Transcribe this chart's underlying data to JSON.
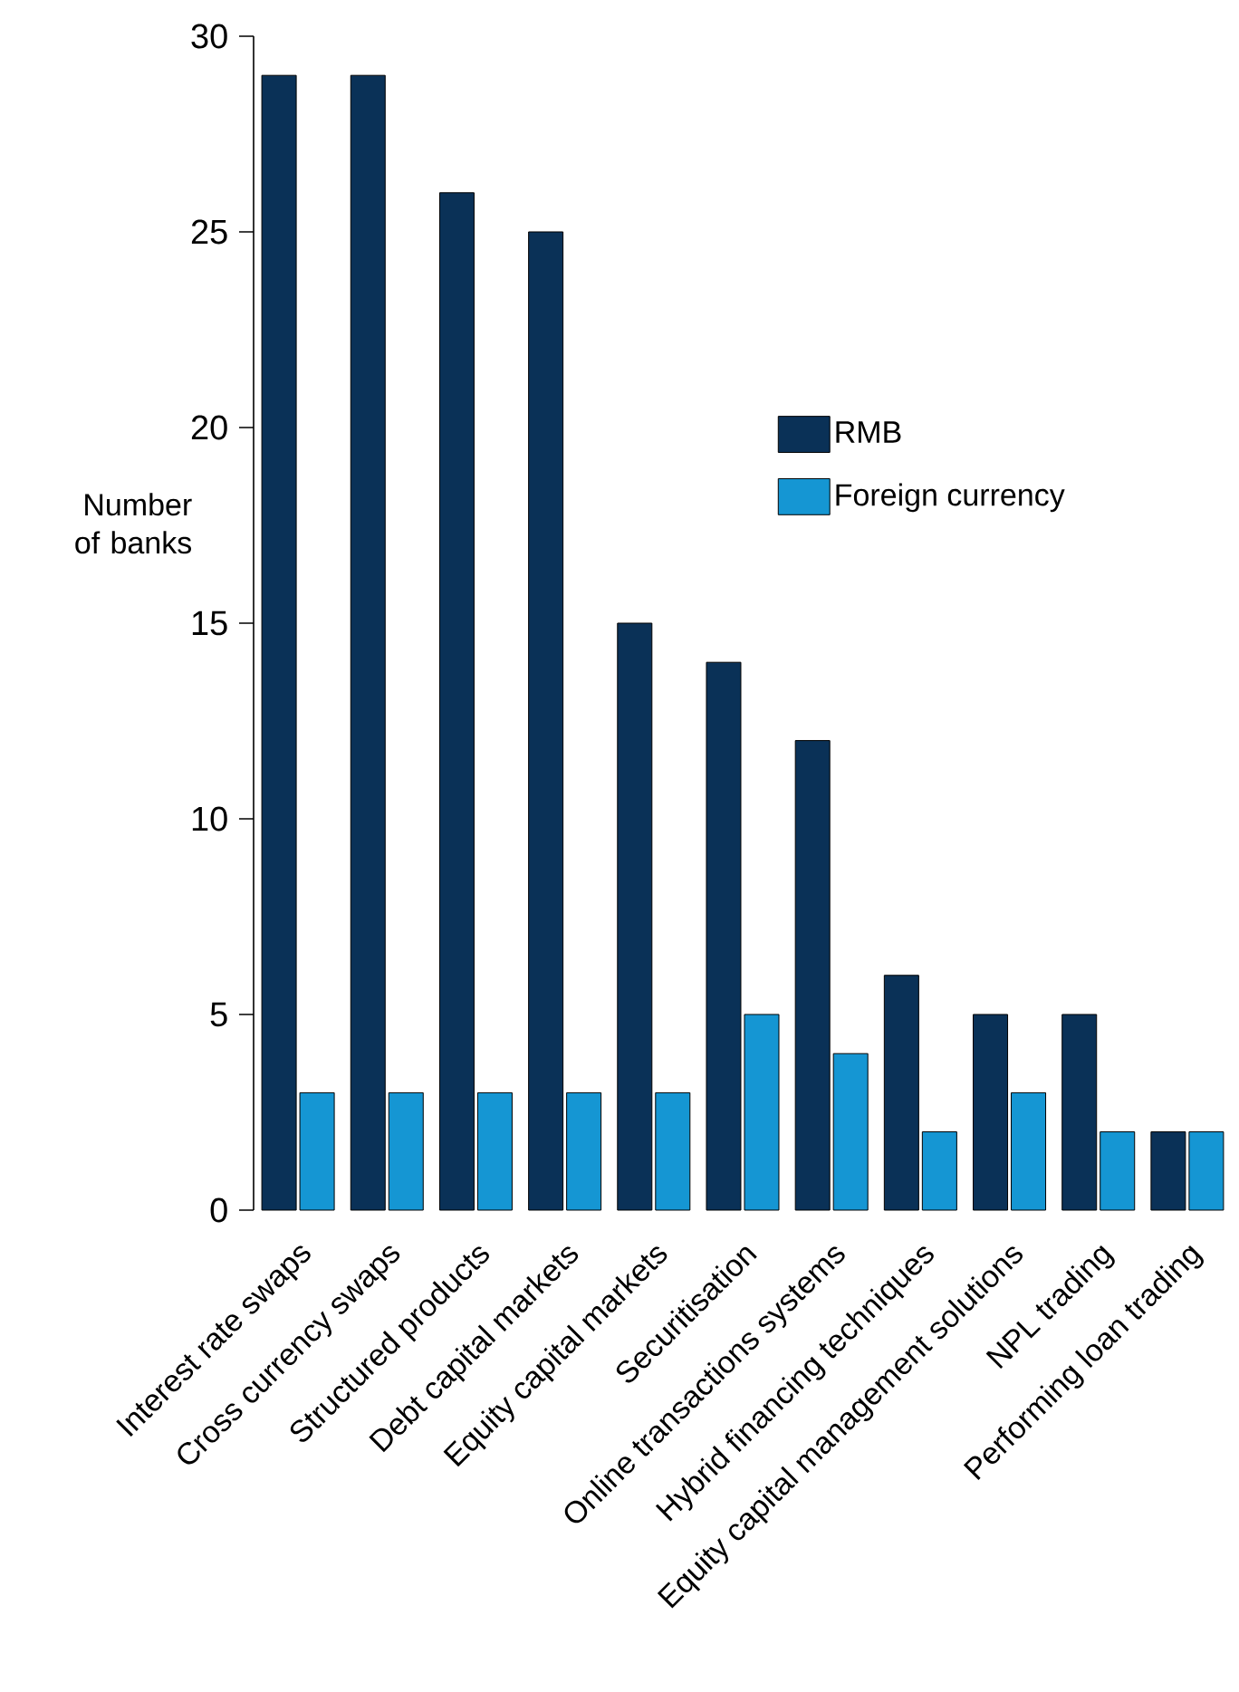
{
  "chart_data": {
    "type": "bar",
    "ylabel": "Number of banks",
    "categories": [
      "Interest rate swaps",
      "Cross currency swaps",
      "Structured products",
      "Debt capital markets",
      "Equity capital markets",
      "Securitisation",
      "Online transactions systems",
      "Hybrid financing techniques",
      "Equity capital management solutions",
      "NPL trading",
      "Performing loan trading"
    ],
    "series": [
      {
        "name": "RMB",
        "color": "#0a3157",
        "values": [
          29,
          29,
          26,
          25,
          15,
          14,
          12,
          6,
          5,
          5,
          2
        ]
      },
      {
        "name": "Foreign currency",
        "color": "#1596d3",
        "values": [
          3,
          3,
          3,
          3,
          3,
          5,
          4,
          2,
          3,
          2,
          2
        ]
      }
    ],
    "ylim": [
      0,
      30
    ],
    "yticks": [
      0,
      5,
      10,
      15,
      20,
      25,
      30
    ],
    "legend": "right",
    "grid": false
  }
}
